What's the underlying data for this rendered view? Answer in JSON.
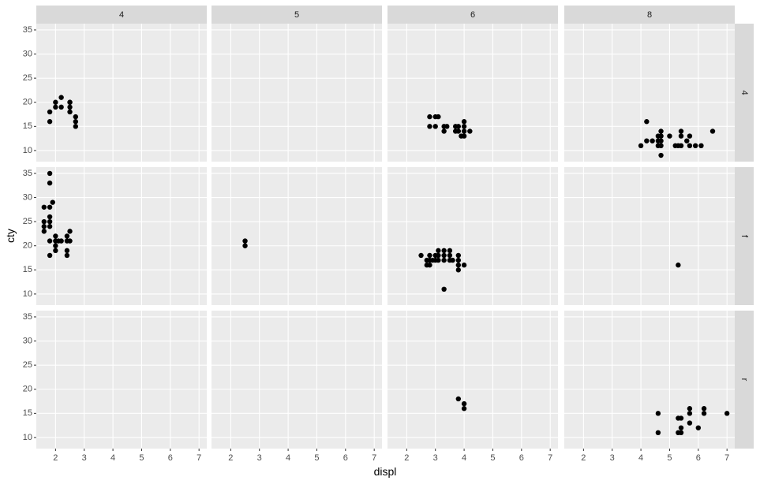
{
  "chart_data": {
    "type": "scatter",
    "x_label": "displ",
    "y_label": "cty",
    "facet_cols": [
      "4",
      "5",
      "6",
      "8"
    ],
    "facet_rows": [
      "4",
      "f",
      "r"
    ],
    "xlim": [
      1.33,
      7.27
    ],
    "ylim": [
      7.7,
      36.3
    ],
    "xticks": [
      2,
      3,
      4,
      5,
      6,
      7
    ],
    "yticks": [
      10,
      15,
      20,
      25,
      30,
      35
    ],
    "grid": true,
    "color": "#000000",
    "panels": [
      [
        {
          "x": [
            1.8,
            1.8,
            2.0,
            2.0,
            2.2,
            2.2,
            2.5,
            2.5,
            2.5,
            2.5,
            2.7,
            2.7,
            2.7
          ],
          "y": [
            18,
            16,
            20,
            19,
            21,
            19,
            20,
            19,
            18,
            20,
            17,
            16,
            15
          ]
        },
        {
          "x": [],
          "y": []
        },
        {
          "x": [
            2.8,
            2.8,
            3.0,
            3.1,
            3.0,
            3.3,
            3.3,
            3.4,
            3.7,
            3.7,
            3.8,
            3.8,
            4.0,
            4.0,
            4.0,
            4.0,
            4.2,
            3.9
          ],
          "y": [
            17,
            15,
            17,
            17,
            15,
            14,
            15,
            15,
            15,
            14,
            14,
            15,
            14,
            13,
            15,
            16,
            14,
            13
          ]
        },
        {
          "x": [
            4.0,
            4.2,
            4.2,
            4.4,
            4.6,
            4.6,
            4.6,
            4.7,
            4.7,
            4.7,
            4.7,
            4.7,
            5.0,
            5.2,
            5.3,
            5.4,
            5.4,
            5.4,
            5.6,
            5.7,
            5.7,
            5.9,
            6.1,
            6.5
          ],
          "y": [
            11,
            16,
            12,
            12,
            13,
            12,
            11,
            14,
            13,
            11,
            9,
            12,
            13,
            11,
            11,
            11,
            14,
            13,
            12,
            13,
            11,
            11,
            11,
            14
          ]
        }
      ],
      [
        {
          "x": [
            1.6,
            1.6,
            1.6,
            1.6,
            1.8,
            1.8,
            1.8,
            1.8,
            1.8,
            1.8,
            1.8,
            1.8,
            1.9,
            2.0,
            2.0,
            2.0,
            2.0,
            2.2,
            2.4,
            2.4,
            2.4,
            2.4,
            2.5,
            2.5,
            2.1
          ],
          "y": [
            28,
            25,
            24,
            23,
            35,
            33,
            28,
            26,
            25,
            24,
            21,
            18,
            29,
            22,
            21,
            20,
            19,
            21,
            22,
            21,
            19,
            18,
            23,
            21,
            21
          ]
        },
        {
          "x": [
            2.5,
            2.5
          ],
          "y": [
            21,
            20
          ]
        },
        {
          "x": [
            2.5,
            2.7,
            2.7,
            2.8,
            2.8,
            2.9,
            3.0,
            3.1,
            3.1,
            3.1,
            3.3,
            3.3,
            3.3,
            3.3,
            3.5,
            3.5,
            3.5,
            3.6,
            3.8,
            3.8,
            3.8,
            3.8,
            4.0,
            2.8,
            3.0
          ],
          "y": [
            18,
            17,
            16,
            18,
            16,
            17,
            18,
            19,
            18,
            17,
            19,
            18,
            17,
            11,
            19,
            18,
            17,
            17,
            18,
            17,
            16,
            15,
            16,
            17,
            17
          ]
        },
        {
          "x": [
            5.3
          ],
          "y": [
            16
          ]
        }
      ],
      [
        {
          "x": [],
          "y": []
        },
        {
          "x": [],
          "y": []
        },
        {
          "x": [
            3.8,
            4.0,
            4.0
          ],
          "y": [
            18,
            17,
            16
          ]
        },
        {
          "x": [
            4.6,
            4.6,
            5.3,
            5.4,
            5.4,
            5.3,
            5.4,
            5.7,
            5.7,
            5.7,
            6.0,
            6.2,
            6.2,
            7.0
          ],
          "y": [
            15,
            11,
            14,
            14,
            12,
            11,
            11,
            16,
            15,
            13,
            12,
            16,
            15,
            15
          ]
        }
      ]
    ]
  }
}
